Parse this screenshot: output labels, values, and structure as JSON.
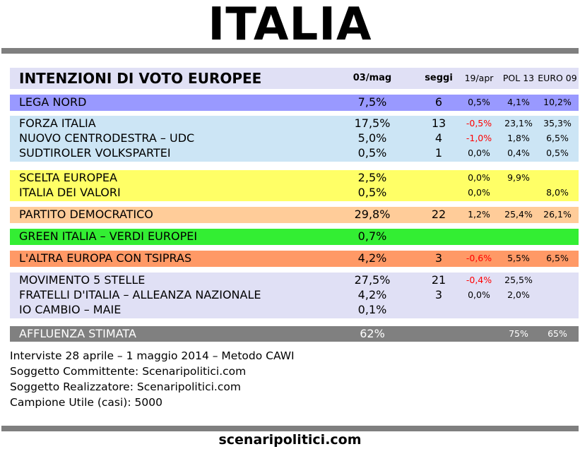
{
  "title": "ITALIA",
  "chart_data": {
    "type": "table",
    "title": "INTENZIONI DI VOTO EUROPEE",
    "columns": [
      "03/mag",
      "seggi",
      "19/apr",
      "POL 13",
      "EURO 09"
    ],
    "groups": [
      {
        "color": "#9999ff",
        "rows": [
          {
            "party": "LEGA NORD",
            "vote": "7,5%",
            "seats": "6",
            "delta": "0,5%",
            "pol13": "4,1%",
            "euro09": "10,2%"
          }
        ]
      },
      {
        "color": "#cce5f5",
        "rows": [
          {
            "party": "FORZA ITALIA",
            "vote": "17,5%",
            "seats": "13",
            "delta": "-0,5%",
            "pol13": "23,1%",
            "euro09": "35,3%"
          },
          {
            "party": "NUOVO CENTRODESTRA – UDC",
            "vote": "5,0%",
            "seats": "4",
            "delta": "-1,0%",
            "pol13": "1,8%",
            "euro09": "6,5%"
          },
          {
            "party": "SUDTIROLER VOLKSPARTEI",
            "vote": "0,5%",
            "seats": "1",
            "delta": "0,0%",
            "pol13": "0,4%",
            "euro09": "0,5%"
          }
        ]
      },
      {
        "color": "#ffff66",
        "rows": [
          {
            "party": "SCELTA EUROPEA",
            "vote": "2,5%",
            "seats": "",
            "delta": "0,0%",
            "pol13": "9,9%",
            "euro09": ""
          },
          {
            "party": "ITALIA DEI VALORI",
            "vote": "0,5%",
            "seats": "",
            "delta": "0,0%",
            "pol13": "",
            "euro09": "8,0%"
          }
        ]
      },
      {
        "color": "#ffcc99",
        "rows": [
          {
            "party": "PARTITO DEMOCRATICO",
            "vote": "29,8%",
            "seats": "22",
            "delta": "1,2%",
            "pol13": "25,4%",
            "euro09": "26,1%"
          }
        ]
      },
      {
        "color": "#33ee33",
        "rows": [
          {
            "party": "GREEN ITALIA – VERDI EUROPEI",
            "vote": "0,7%",
            "seats": "",
            "delta": "",
            "pol13": "",
            "euro09": ""
          }
        ]
      },
      {
        "color": "#ff9966",
        "rows": [
          {
            "party": "L'ALTRA EUROPA CON TSIPRAS",
            "vote": "4,2%",
            "seats": "3",
            "delta": "-0,6%",
            "pol13": "5,5%",
            "euro09": "6,5%"
          }
        ]
      },
      {
        "color": "#e0e0f5",
        "rows": [
          {
            "party": "MOVIMENTO 5 STELLE",
            "vote": "27,5%",
            "seats": "21",
            "delta": "-0,4%",
            "pol13": "25,5%",
            "euro09": ""
          },
          {
            "party": "FRATELLI D'ITALIA – ALLEANZA NAZIONALE",
            "vote": "4,2%",
            "seats": "3",
            "delta": "0,0%",
            "pol13": "2,0%",
            "euro09": ""
          },
          {
            "party": "IO CAMBIO – MAIE",
            "vote": "0,1%",
            "seats": "",
            "delta": "",
            "pol13": "",
            "euro09": ""
          }
        ]
      }
    ],
    "turnout": {
      "label": "AFFLUENZA STIMATA",
      "vote": "62%",
      "pol13": "75%",
      "euro09": "65%"
    }
  },
  "header_color": "#e0e0f5",
  "turnout_color": "#808080",
  "negative_color": "#ff0000",
  "notes": [
    "Interviste 28 aprile – 1 maggio 2014 – Metodo CAWI",
    "Soggetto Committente: Scenaripolitici.com",
    "Soggetto Realizzatore: Scenaripolitici.com",
    "Campione Utile (casi): 5000"
  ],
  "footer": "scenaripolitici.com"
}
